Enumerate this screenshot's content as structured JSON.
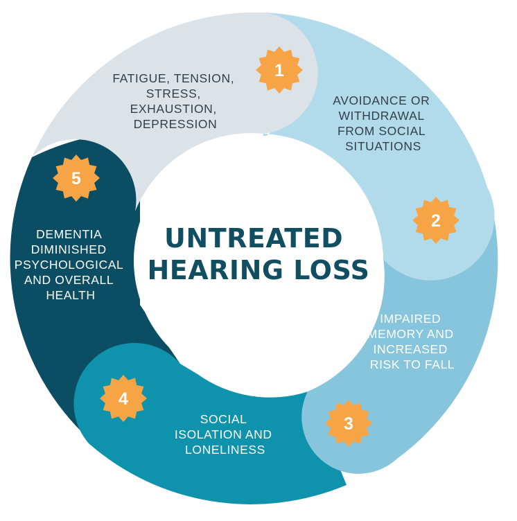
{
  "center": {
    "line1": "UNTREATED",
    "line2": "HEARING LOSS"
  },
  "segments": [
    {
      "number": "1",
      "lines": [
        "FATIGUE, TENSION,",
        "STRESS,",
        "EXHAUSTION,",
        "DEPRESSION"
      ]
    },
    {
      "number": "2",
      "lines": [
        "AVOIDANCE OR",
        "WITHDRAWAL",
        "FROM SOCIAL",
        "SITUATIONS"
      ]
    },
    {
      "number": "3",
      "lines": [
        "IMPAIRED",
        "MEMORY AND",
        "INCREASED",
        "RISK TO FALL"
      ]
    },
    {
      "number": "4",
      "lines": [
        "SOCIAL",
        "ISOLATION AND",
        "LONELINESS"
      ]
    },
    {
      "number": "5",
      "lines": [
        "DEMENTIA",
        "DIMINISHED",
        "PSYCHOLOGICAL",
        "AND OVERALL",
        "HEALTH"
      ]
    }
  ],
  "colors": {
    "segment1": "#dbe3e8",
    "segment2": "#b1dbea",
    "segment3": "#86c5db",
    "segment4": "#0f93ac",
    "segment5": "#0b4e64",
    "badge": "#f6a445",
    "center_title": "#124e62"
  }
}
